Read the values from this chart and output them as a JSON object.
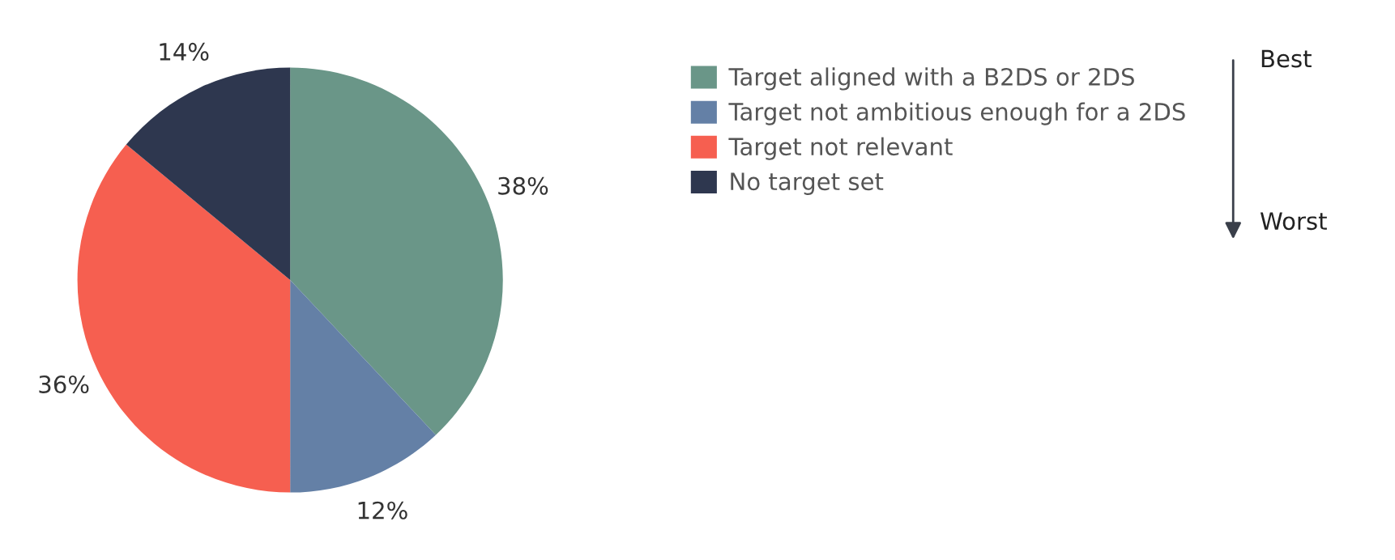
{
  "chart_data": {
    "type": "pie",
    "categories": [
      "Target aligned with a B2DS or 2DS",
      "Target not ambitious enough for a 2DS",
      "Target not relevant",
      "No target set"
    ],
    "values": [
      38,
      12,
      36,
      14
    ],
    "colors": [
      "#6a9688",
      "#6480a6",
      "#f65f50",
      "#2e374f"
    ],
    "value_labels": [
      "38%",
      "12%",
      "36%",
      "14%"
    ],
    "legend": "right",
    "annotations": [
      "Best",
      "Worst"
    ]
  }
}
